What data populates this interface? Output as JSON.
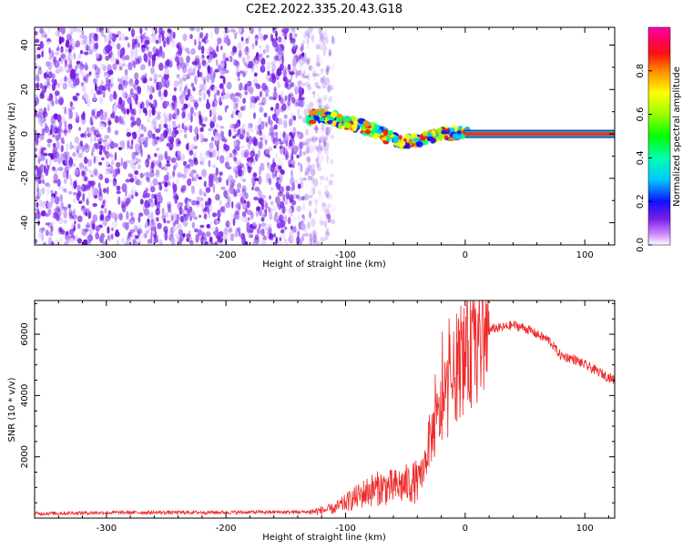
{
  "title": "C2E2.2022.335.20.43.G18",
  "colors": {
    "snr_line": "#ee2b2b",
    "scatter_points": "#7a1ee6",
    "flat_band_core": "#ee2b3b",
    "flat_band_edge": "#00cc66"
  },
  "chart_data": [
    {
      "type": "heatmap",
      "xlabel": "Height of straight line (km)",
      "ylabel": "Frequency (Hz)",
      "xlim": [
        -360,
        125
      ],
      "ylim": [
        -50,
        48
      ],
      "xticks": [
        -300,
        -200,
        -100,
        0,
        100
      ],
      "yticks": [
        -40,
        -20,
        0,
        20,
        40
      ],
      "grid": false,
      "description_points": {
        "noise_region_x": [
          -360,
          -120
        ],
        "doppler_trace": {
          "x": [
            -130,
            -120,
            -110,
            -100,
            -90,
            -80,
            -70,
            -60,
            -50,
            -40,
            -30,
            -20,
            -10,
            0,
            10,
            50,
            100,
            125
          ],
          "y": [
            7,
            8,
            7,
            5,
            4,
            2,
            0,
            -2,
            -4,
            -3,
            -1,
            0,
            0,
            1,
            0,
            0,
            0,
            0
          ]
        }
      },
      "colorbar": {
        "label": "Normalized spectral amplitude",
        "range": [
          0,
          1
        ],
        "ticks": [
          0.0,
          0.2,
          0.4,
          0.6,
          0.8
        ],
        "tick_labels": [
          "0.0",
          "0.2",
          "0.4",
          "0.6",
          "0.8"
        ]
      }
    },
    {
      "type": "line",
      "xlabel": "Height of straight line (km)",
      "ylabel": "SNR (10 * v/v)",
      "xlim": [
        -360,
        125
      ],
      "ylim": [
        0,
        7100
      ],
      "xticks": [
        -300,
        -200,
        -100,
        0,
        100
      ],
      "yticks": [
        2000,
        4000,
        6000
      ],
      "grid": false,
      "series": [
        {
          "x": [
            -360,
            -300,
            -200,
            -130,
            -110,
            -100,
            -90,
            -80,
            -70,
            -60,
            -50,
            -40,
            -35,
            -30,
            -25,
            -20,
            -15,
            -10,
            -5,
            0,
            5,
            10,
            15,
            20,
            25,
            30,
            40,
            50,
            60,
            70,
            80,
            90,
            100,
            110,
            125
          ],
          "values": [
            150,
            180,
            190,
            200,
            300,
            500,
            700,
            900,
            1000,
            1000,
            1100,
            1200,
            1600,
            2500,
            3000,
            3500,
            4000,
            4500,
            5000,
            5200,
            5500,
            5600,
            5900,
            6100,
            6200,
            6200,
            6300,
            6200,
            6000,
            5800,
            5300,
            5200,
            5000,
            4800,
            4500
          ]
        }
      ]
    }
  ]
}
